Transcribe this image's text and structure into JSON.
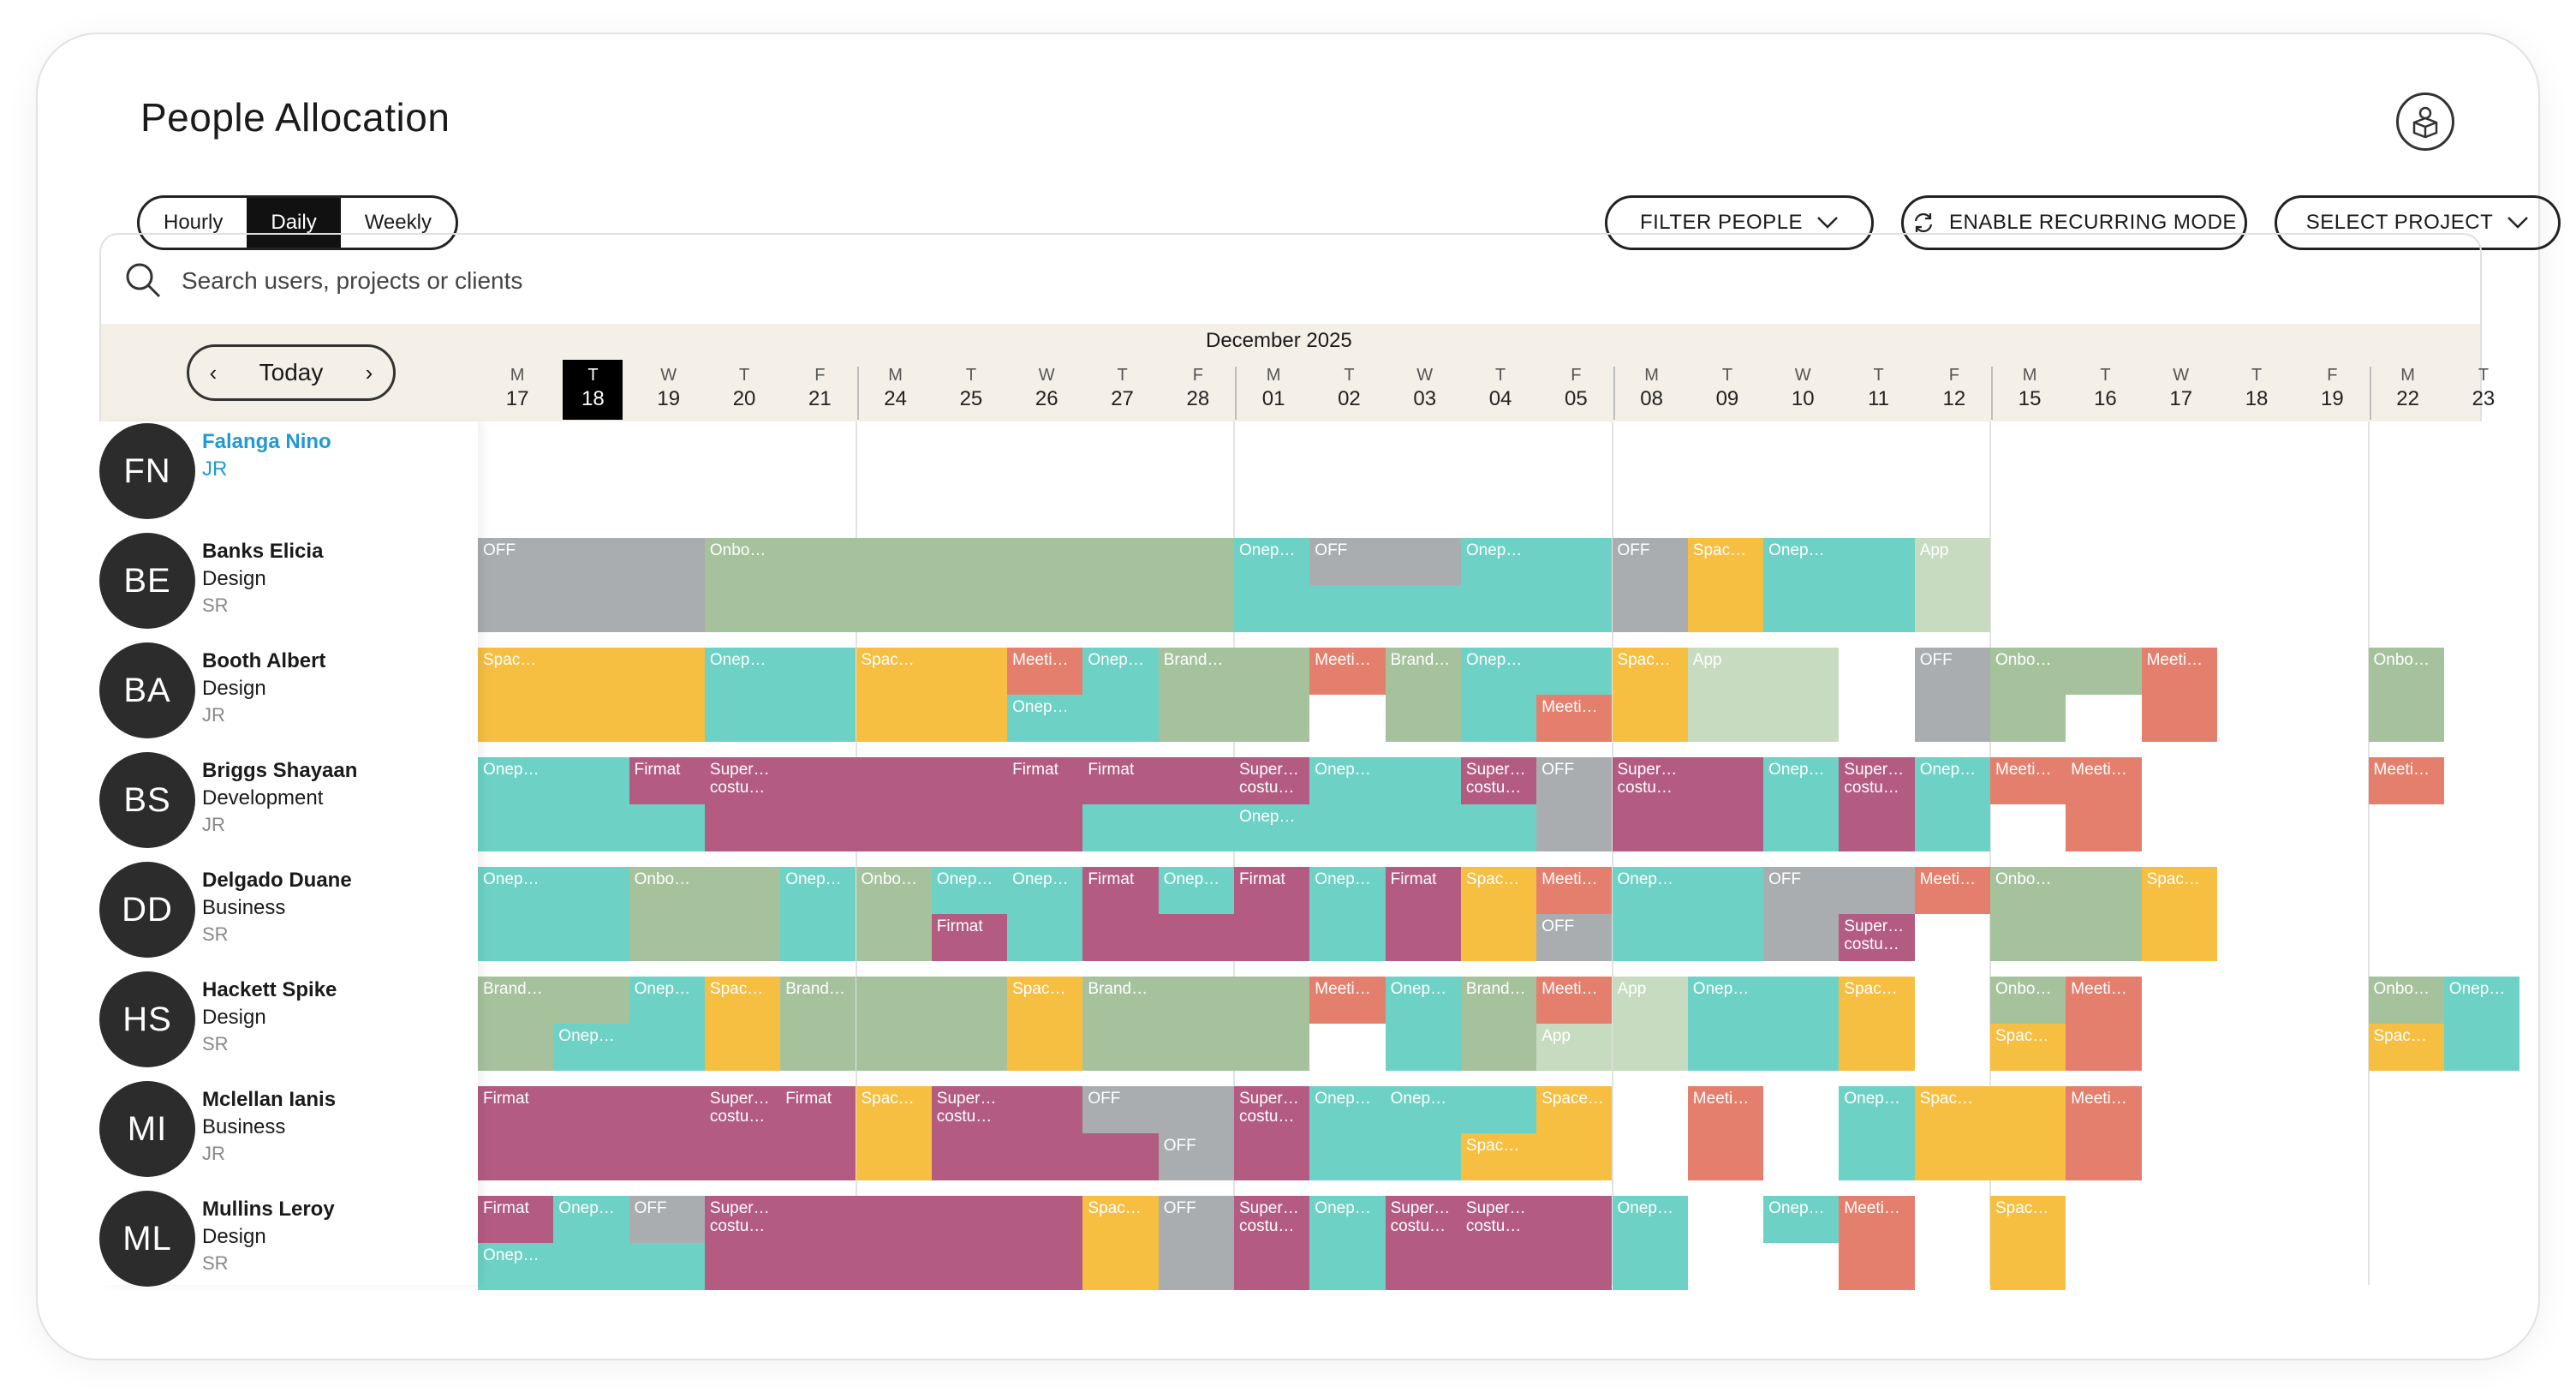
{
  "page": {
    "title": "People Allocation",
    "profile_icon": "user-box-icon"
  },
  "view_toggle": {
    "options": [
      "Hourly",
      "Daily",
      "Weekly"
    ],
    "selected": "Daily"
  },
  "toolbar": {
    "filter_people": "FILTER PEOPLE",
    "recurring": "ENABLE RECURRING MODE",
    "select_project": "SELECT PROJECT"
  },
  "search": {
    "placeholder": "Search users, projects or clients"
  },
  "calendar": {
    "month": "December 2025",
    "today_label": "Today",
    "today_index": 1,
    "days": [
      {
        "w": "M",
        "n": "17"
      },
      {
        "w": "T",
        "n": "18"
      },
      {
        "w": "W",
        "n": "19"
      },
      {
        "w": "T",
        "n": "20"
      },
      {
        "w": "F",
        "n": "21"
      },
      {
        "w": "M",
        "n": "24"
      },
      {
        "w": "T",
        "n": "25"
      },
      {
        "w": "W",
        "n": "26"
      },
      {
        "w": "T",
        "n": "27"
      },
      {
        "w": "F",
        "n": "28"
      },
      {
        "w": "M",
        "n": "01"
      },
      {
        "w": "T",
        "n": "02"
      },
      {
        "w": "W",
        "n": "03"
      },
      {
        "w": "T",
        "n": "04"
      },
      {
        "w": "F",
        "n": "05"
      },
      {
        "w": "M",
        "n": "08"
      },
      {
        "w": "T",
        "n": "09"
      },
      {
        "w": "W",
        "n": "10"
      },
      {
        "w": "T",
        "n": "11"
      },
      {
        "w": "F",
        "n": "12"
      },
      {
        "w": "M",
        "n": "15"
      },
      {
        "w": "T",
        "n": "16"
      },
      {
        "w": "W",
        "n": "17"
      },
      {
        "w": "T",
        "n": "18"
      },
      {
        "w": "F",
        "n": "19"
      },
      {
        "w": "M",
        "n": "22"
      },
      {
        "w": "T",
        "n": "23"
      }
    ]
  },
  "people": [
    {
      "initials": "FN",
      "name": "Falanga Nino",
      "dept": "JR",
      "level": "",
      "selected": true
    },
    {
      "initials": "BE",
      "name": "Banks Elicia",
      "dept": "Design",
      "level": "SR"
    },
    {
      "initials": "BA",
      "name": "Booth Albert",
      "dept": "Design",
      "level": "JR"
    },
    {
      "initials": "BS",
      "name": "Briggs Shayaan",
      "dept": "Development",
      "level": "JR"
    },
    {
      "initials": "DD",
      "name": "Delgado Duane",
      "dept": "Business",
      "level": "SR"
    },
    {
      "initials": "HS",
      "name": "Hackett Spike",
      "dept": "Design",
      "level": "SR"
    },
    {
      "initials": "MI",
      "name": "Mclellan Ianis",
      "dept": "Business",
      "level": "JR"
    },
    {
      "initials": "ML",
      "name": "Mullins Leroy",
      "dept": "Design",
      "level": "SR"
    }
  ],
  "colors": {
    "off": "#a9adaf",
    "onb": "#a6c29d",
    "onep": "#6dd2c5",
    "spac": "#f6bf42",
    "app": "#c7dbc0",
    "meet": "#e57f6d",
    "brand": "#a6c29d",
    "firm": "#b45b82",
    "sup": "#b45b82"
  },
  "allocations": [
    [],
    [
      {
        "s": 0,
        "e": 3,
        "slot": "full",
        "c": "off",
        "l": "OFF"
      },
      {
        "s": 3,
        "e": 10,
        "slot": "full",
        "c": "onb",
        "l": "Onbo…"
      },
      {
        "s": 10,
        "e": 11,
        "slot": "full",
        "c": "onep",
        "l": "Onep…"
      },
      {
        "s": 11,
        "e": 13,
        "slot": "top",
        "c": "off",
        "l": "OFF"
      },
      {
        "s": 11,
        "e": 13,
        "slot": "bottom",
        "c": "onep",
        "l": ""
      },
      {
        "s": 13,
        "e": 15,
        "slot": "full",
        "c": "onep",
        "l": "Onep…"
      },
      {
        "s": 15,
        "e": 16,
        "slot": "full",
        "c": "off",
        "l": "OFF"
      },
      {
        "s": 16,
        "e": 17,
        "slot": "full",
        "c": "spac",
        "l": "Spac…"
      },
      {
        "s": 17,
        "e": 19,
        "slot": "full",
        "c": "onep",
        "l": "Onep…"
      },
      {
        "s": 19,
        "e": 20,
        "slot": "full",
        "c": "app",
        "l": "App"
      }
    ],
    [
      {
        "s": 0,
        "e": 3,
        "slot": "full",
        "c": "spac",
        "l": "Spac…"
      },
      {
        "s": 3,
        "e": 5,
        "slot": "full",
        "c": "onep",
        "l": "Onep…"
      },
      {
        "s": 5,
        "e": 7,
        "slot": "full",
        "c": "spac",
        "l": "Spac…"
      },
      {
        "s": 7,
        "e": 8,
        "slot": "top",
        "c": "meet",
        "l": "Meeti…"
      },
      {
        "s": 7,
        "e": 9,
        "slot": "bottom",
        "c": "onep",
        "l": "Onep…"
      },
      {
        "s": 8,
        "e": 9,
        "slot": "top",
        "c": "onep",
        "l": "Onep…"
      },
      {
        "s": 9,
        "e": 10,
        "slot": "full",
        "c": "brand",
        "l": "Brand…"
      },
      {
        "s": 10,
        "e": 11,
        "slot": "full",
        "c": "onb",
        "l": ""
      },
      {
        "s": 11,
        "e": 12,
        "slot": "top",
        "c": "meet",
        "l": "Meeti…"
      },
      {
        "s": 12,
        "e": 13,
        "slot": "full",
        "c": "brand",
        "l": "Brand…"
      },
      {
        "s": 13,
        "e": 15,
        "slot": "top",
        "c": "onep",
        "l": "Onep…"
      },
      {
        "s": 13,
        "e": 14,
        "slot": "bottom",
        "c": "onep",
        "l": ""
      },
      {
        "s": 14,
        "e": 15,
        "slot": "bottom",
        "c": "meet",
        "l": "Meeti…"
      },
      {
        "s": 15,
        "e": 16,
        "slot": "full",
        "c": "spac",
        "l": "Spac…"
      },
      {
        "s": 16,
        "e": 18,
        "slot": "full",
        "c": "app",
        "l": "App"
      },
      {
        "s": 19,
        "e": 20,
        "slot": "full",
        "c": "off",
        "l": "OFF"
      },
      {
        "s": 20,
        "e": 22,
        "slot": "top",
        "c": "onb",
        "l": "Onbo…"
      },
      {
        "s": 20,
        "e": 21,
        "slot": "bottom",
        "c": "onb",
        "l": ""
      },
      {
        "s": 22,
        "e": 23,
        "slot": "full",
        "c": "meet",
        "l": "Meeti…"
      },
      {
        "s": 25,
        "e": 26,
        "slot": "full",
        "c": "onb",
        "l": "Onbo…"
      }
    ],
    [
      {
        "s": 0,
        "e": 2,
        "slot": "full",
        "c": "onep",
        "l": "Onep…"
      },
      {
        "s": 2,
        "e": 3,
        "slot": "top",
        "c": "firm",
        "l": "Firmat"
      },
      {
        "s": 2,
        "e": 3,
        "slot": "bottom",
        "c": "onep",
        "l": ""
      },
      {
        "s": 3,
        "e": 7,
        "slot": "full",
        "c": "sup",
        "l": "Super… costu…"
      },
      {
        "s": 7,
        "e": 8,
        "slot": "top",
        "c": "firm",
        "l": "Firmat"
      },
      {
        "s": 7,
        "e": 8,
        "slot": "bottom",
        "c": "sup",
        "l": ""
      },
      {
        "s": 8,
        "e": 10,
        "slot": "top",
        "c": "firm",
        "l": "Firmat"
      },
      {
        "s": 8,
        "e": 10,
        "slot": "bottom",
        "c": "onep",
        "l": ""
      },
      {
        "s": 10,
        "e": 11,
        "slot": "top",
        "c": "sup",
        "l": "Super… costu…"
      },
      {
        "s": 10,
        "e": 13,
        "slot": "bottom",
        "c": "onep",
        "l": "Onep…"
      },
      {
        "s": 11,
        "e": 13,
        "slot": "top",
        "c": "onep",
        "l": "Onep…"
      },
      {
        "s": 13,
        "e": 14,
        "slot": "top",
        "c": "sup",
        "l": "Super… costu…"
      },
      {
        "s": 13,
        "e": 14,
        "slot": "bottom",
        "c": "onep",
        "l": ""
      },
      {
        "s": 14,
        "e": 15,
        "slot": "full",
        "c": "off",
        "l": "OFF"
      },
      {
        "s": 15,
        "e": 17,
        "slot": "full",
        "c": "sup",
        "l": "Super… costu…"
      },
      {
        "s": 17,
        "e": 18,
        "slot": "full",
        "c": "onep",
        "l": "Onep…"
      },
      {
        "s": 18,
        "e": 19,
        "slot": "full",
        "c": "sup",
        "l": "Super… costu…"
      },
      {
        "s": 19,
        "e": 20,
        "slot": "full",
        "c": "onep",
        "l": "Onep…"
      },
      {
        "s": 20,
        "e": 21,
        "slot": "top",
        "c": "meet",
        "l": "Meeti…"
      },
      {
        "s": 21,
        "e": 22,
        "slot": "full",
        "c": "meet",
        "l": "Meeti…"
      },
      {
        "s": 25,
        "e": 26,
        "slot": "top",
        "c": "meet",
        "l": "Meeti…"
      }
    ],
    [
      {
        "s": 0,
        "e": 2,
        "slot": "full",
        "c": "onep",
        "l": "Onep…"
      },
      {
        "s": 2,
        "e": 4,
        "slot": "full",
        "c": "onb",
        "l": "Onbo…"
      },
      {
        "s": 4,
        "e": 5,
        "slot": "full",
        "c": "onep",
        "l": "Onep…"
      },
      {
        "s": 5,
        "e": 6,
        "slot": "full",
        "c": "onb",
        "l": "Onbo…"
      },
      {
        "s": 6,
        "e": 7,
        "slot": "top",
        "c": "onep",
        "l": "Onep…"
      },
      {
        "s": 6,
        "e": 7,
        "slot": "bottom",
        "c": "firm",
        "l": "Firmat"
      },
      {
        "s": 7,
        "e": 8,
        "slot": "full",
        "c": "onep",
        "l": "Onep…"
      },
      {
        "s": 8,
        "e": 9,
        "slot": "full",
        "c": "firm",
        "l": "Firmat"
      },
      {
        "s": 9,
        "e": 10,
        "slot": "top",
        "c": "onep",
        "l": "Onep…"
      },
      {
        "s": 9,
        "e": 10,
        "slot": "bottom",
        "c": "firm",
        "l": ""
      },
      {
        "s": 10,
        "e": 11,
        "slot": "full",
        "c": "firm",
        "l": "Firmat"
      },
      {
        "s": 11,
        "e": 12,
        "slot": "full",
        "c": "onep",
        "l": "Onep…"
      },
      {
        "s": 12,
        "e": 13,
        "slot": "full",
        "c": "firm",
        "l": "Firmat"
      },
      {
        "s": 13,
        "e": 14,
        "slot": "full",
        "c": "spac",
        "l": "Spac…"
      },
      {
        "s": 14,
        "e": 15,
        "slot": "top",
        "c": "meet",
        "l": "Meeti…"
      },
      {
        "s": 14,
        "e": 15,
        "slot": "bottom",
        "c": "off",
        "l": "OFF"
      },
      {
        "s": 15,
        "e": 17,
        "slot": "full",
        "c": "onep",
        "l": "Onep…"
      },
      {
        "s": 17,
        "e": 19,
        "slot": "top",
        "c": "off",
        "l": "OFF"
      },
      {
        "s": 17,
        "e": 18,
        "slot": "bottom",
        "c": "off",
        "l": ""
      },
      {
        "s": 18,
        "e": 19,
        "slot": "bottom",
        "c": "sup",
        "l": "Super… costu…"
      },
      {
        "s": 19,
        "e": 20,
        "slot": "top",
        "c": "meet",
        "l": "Meeti…"
      },
      {
        "s": 20,
        "e": 22,
        "slot": "full",
        "c": "onb",
        "l": "Onbo…"
      },
      {
        "s": 22,
        "e": 23,
        "slot": "full",
        "c": "spac",
        "l": "Spac…"
      }
    ],
    [
      {
        "s": 0,
        "e": 2,
        "slot": "top",
        "c": "brand",
        "l": "Brand…"
      },
      {
        "s": 0,
        "e": 1,
        "slot": "bottom",
        "c": "brand",
        "l": ""
      },
      {
        "s": 1,
        "e": 3,
        "slot": "bottom",
        "c": "onep",
        "l": "Onep…"
      },
      {
        "s": 2,
        "e": 3,
        "slot": "top",
        "c": "onep",
        "l": "Onep…"
      },
      {
        "s": 3,
        "e": 4,
        "slot": "full",
        "c": "spac",
        "l": "Spac…"
      },
      {
        "s": 4,
        "e": 5,
        "slot": "full",
        "c": "brand",
        "l": "Brand…"
      },
      {
        "s": 5,
        "e": 7,
        "slot": "full",
        "c": "onb",
        "l": ""
      },
      {
        "s": 7,
        "e": 8,
        "slot": "full",
        "c": "spac",
        "l": "Spac…"
      },
      {
        "s": 8,
        "e": 10,
        "slot": "full",
        "c": "brand",
        "l": "Brand…"
      },
      {
        "s": 10,
        "e": 11,
        "slot": "full",
        "c": "onb",
        "l": ""
      },
      {
        "s": 11,
        "e": 12,
        "slot": "top",
        "c": "meet",
        "l": "Meeti…"
      },
      {
        "s": 12,
        "e": 13,
        "slot": "full",
        "c": "onep",
        "l": "Onep…"
      },
      {
        "s": 13,
        "e": 14,
        "slot": "full",
        "c": "brand",
        "l": "Brand…"
      },
      {
        "s": 14,
        "e": 15,
        "slot": "top",
        "c": "meet",
        "l": "Meeti…"
      },
      {
        "s": 14,
        "e": 15,
        "slot": "bottom",
        "c": "app",
        "l": "App"
      },
      {
        "s": 15,
        "e": 16,
        "slot": "full",
        "c": "app",
        "l": "App"
      },
      {
        "s": 16,
        "e": 18,
        "slot": "full",
        "c": "onep",
        "l": "Onep…"
      },
      {
        "s": 18,
        "e": 19,
        "slot": "full",
        "c": "spac",
        "l": "Spac…"
      },
      {
        "s": 20,
        "e": 21,
        "slot": "top",
        "c": "onb",
        "l": "Onbo…"
      },
      {
        "s": 20,
        "e": 21,
        "slot": "bottom",
        "c": "spac",
        "l": "Spac…"
      },
      {
        "s": 21,
        "e": 22,
        "slot": "full",
        "c": "meet",
        "l": "Meeti…"
      },
      {
        "s": 25,
        "e": 26,
        "slot": "top",
        "c": "onb",
        "l": "Onbo…"
      },
      {
        "s": 25,
        "e": 26,
        "slot": "bottom",
        "c": "spac",
        "l": "Spac…"
      },
      {
        "s": 26,
        "e": 27,
        "slot": "full",
        "c": "onep",
        "l": "Onep…"
      }
    ],
    [
      {
        "s": 0,
        "e": 3,
        "slot": "full",
        "c": "firm",
        "l": "Firmat"
      },
      {
        "s": 3,
        "e": 4,
        "slot": "full",
        "c": "sup",
        "l": "Super… costu…"
      },
      {
        "s": 4,
        "e": 5,
        "slot": "full",
        "c": "firm",
        "l": "Firmat"
      },
      {
        "s": 5,
        "e": 6,
        "slot": "full",
        "c": "spac",
        "l": "Spac…"
      },
      {
        "s": 6,
        "e": 8,
        "slot": "full",
        "c": "sup",
        "l": "Super… costu…"
      },
      {
        "s": 8,
        "e": 10,
        "slot": "top",
        "c": "off",
        "l": "OFF"
      },
      {
        "s": 8,
        "e": 9,
        "slot": "bottom",
        "c": "sup",
        "l": ""
      },
      {
        "s": 9,
        "e": 10,
        "slot": "bottom",
        "c": "off",
        "l": "OFF"
      },
      {
        "s": 10,
        "e": 11,
        "slot": "full",
        "c": "sup",
        "l": "Super… costu…"
      },
      {
        "s": 11,
        "e": 12,
        "slot": "top",
        "c": "onep",
        "l": "Onep…"
      },
      {
        "s": 11,
        "e": 13,
        "slot": "bottom",
        "c": "onep",
        "l": ""
      },
      {
        "s": 12,
        "e": 14,
        "slot": "top",
        "c": "onep",
        "l": "Onep…"
      },
      {
        "s": 13,
        "e": 14,
        "slot": "bottom",
        "c": "spac",
        "l": "Spac…"
      },
      {
        "s": 14,
        "e": 15,
        "slot": "full",
        "c": "spac",
        "l": "Space…"
      },
      {
        "s": 16,
        "e": 17,
        "slot": "full",
        "c": "meet",
        "l": "Meeti…"
      },
      {
        "s": 18,
        "e": 19,
        "slot": "full",
        "c": "onep",
        "l": "Onep…"
      },
      {
        "s": 19,
        "e": 20,
        "slot": "full",
        "c": "spac",
        "l": "Spac…"
      },
      {
        "s": 20,
        "e": 21,
        "slot": "full",
        "c": "spac",
        "l": ""
      },
      {
        "s": 21,
        "e": 22,
        "slot": "full",
        "c": "meet",
        "l": "Meeti…"
      }
    ],
    [
      {
        "s": 0,
        "e": 1,
        "slot": "top",
        "c": "firm",
        "l": "Firmat"
      },
      {
        "s": 0,
        "e": 3,
        "slot": "bottom",
        "c": "onep",
        "l": "Onep…"
      },
      {
        "s": 1,
        "e": 2,
        "slot": "top",
        "c": "onep",
        "l": "Onep…"
      },
      {
        "s": 2,
        "e": 3,
        "slot": "top",
        "c": "off",
        "l": "OFF"
      },
      {
        "s": 3,
        "e": 8,
        "slot": "full",
        "c": "sup",
        "l": "Super… costu…"
      },
      {
        "s": 8,
        "e": 9,
        "slot": "full",
        "c": "spac",
        "l": "Spac…"
      },
      {
        "s": 9,
        "e": 10,
        "slot": "full",
        "c": "off",
        "l": "OFF"
      },
      {
        "s": 10,
        "e": 11,
        "slot": "full",
        "c": "sup",
        "l": "Super… costu…"
      },
      {
        "s": 11,
        "e": 12,
        "slot": "full",
        "c": "onep",
        "l": "Onep…"
      },
      {
        "s": 12,
        "e": 13,
        "slot": "full",
        "c": "sup",
        "l": "Super… costu…"
      },
      {
        "s": 13,
        "e": 15,
        "slot": "full",
        "c": "sup",
        "l": "Super… costu…"
      },
      {
        "s": 15,
        "e": 16,
        "slot": "full",
        "c": "onep",
        "l": "Onep…"
      },
      {
        "s": 17,
        "e": 18,
        "slot": "top",
        "c": "onep",
        "l": "Onep…"
      },
      {
        "s": 18,
        "e": 19,
        "slot": "full",
        "c": "meet",
        "l": "Meeti…"
      },
      {
        "s": 20,
        "e": 21,
        "slot": "full",
        "c": "spac",
        "l": "Spac…"
      }
    ]
  ]
}
